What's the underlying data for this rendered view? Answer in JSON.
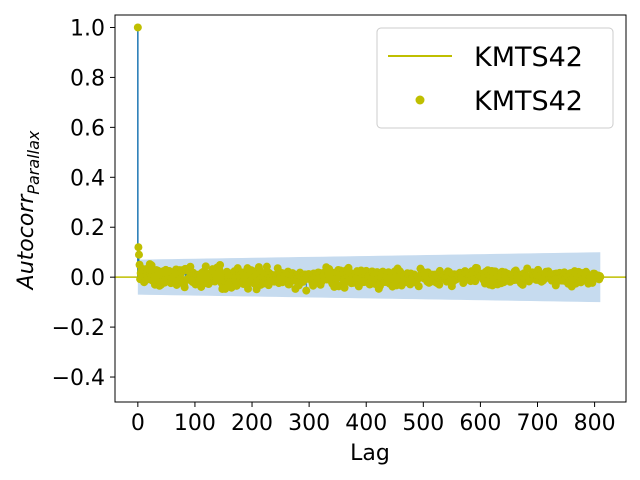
{
  "chart_data": {
    "type": "scatter",
    "subtype": "autocorrelation-stem",
    "title": "",
    "xlabel": "Lag",
    "ylabel_base": "Autocorr",
    "ylabel_sub": "Parallax",
    "xlim": [
      -40,
      855
    ],
    "ylim": [
      -0.5,
      1.05
    ],
    "xticks": [
      0,
      100,
      200,
      300,
      400,
      500,
      600,
      700,
      800
    ],
    "yticks": [
      -0.4,
      -0.2,
      0.0,
      0.2,
      0.4,
      0.6,
      0.8,
      1.0
    ],
    "ytick_labels": [
      "−0.4",
      "−0.2",
      "0.0",
      "0.2",
      "0.4",
      "0.6",
      "0.8",
      "1.0"
    ],
    "grid": false,
    "legend_position": "top-right",
    "series": [
      {
        "name": "KMTS42",
        "kind": "line",
        "color": "#bfbf00"
      },
      {
        "name": "KMTS42",
        "kind": "markers",
        "color": "#bfbf00"
      }
    ],
    "stem_color": "#1f77b4",
    "confidence_band": {
      "color": "#c6dbef",
      "x": [
        0,
        810
      ],
      "upper": [
        0.07,
        0.1
      ],
      "lower": [
        -0.07,
        -0.1
      ]
    },
    "max_lag": 810,
    "highlight_points": [
      {
        "x": 0,
        "y": 1.0
      },
      {
        "x": 1,
        "y": 0.12
      },
      {
        "x": 2,
        "y": 0.09
      }
    ]
  }
}
